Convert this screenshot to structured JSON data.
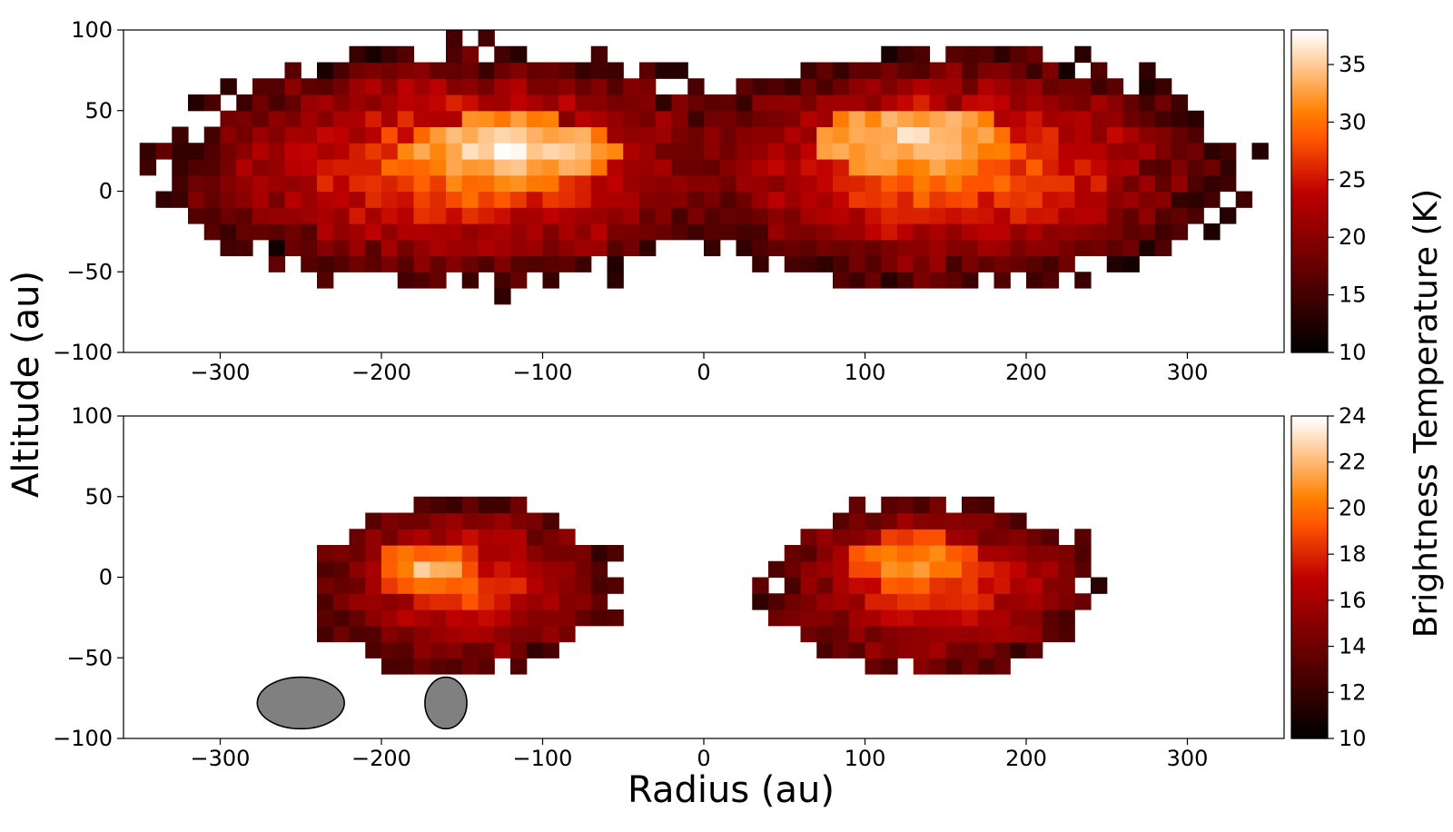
{
  "figure": {
    "xlabel": "Radius (au)",
    "ylabel": "Altitude (au)",
    "colorbar_label": "Brightness Temperature (K)"
  },
  "chart_data": [
    {
      "type": "heatmap",
      "panel": "top",
      "xlim": [
        -360,
        360
      ],
      "ylim": [
        -100,
        100
      ],
      "x_ticks": [
        -300,
        -200,
        -100,
        0,
        100,
        200,
        300
      ],
      "x_tick_labels": [
        "−300",
        "−200",
        "−100",
        "0",
        "100",
        "200",
        "300"
      ],
      "y_ticks": [
        100,
        50,
        0,
        -50,
        -100
      ],
      "y_tick_labels": [
        "100",
        "50",
        "0",
        "−50",
        "−100"
      ],
      "colorbar": {
        "vmin": 10,
        "vmax": 38,
        "ticks": [
          35,
          30,
          25,
          20,
          15,
          10
        ],
        "tick_labels": [
          "35",
          "30",
          "25",
          "20",
          "15",
          "10"
        ]
      },
      "colormap": "gist_heat",
      "cell_width_au": 10,
      "cell_height_au": 10,
      "lobes": [
        {
          "x_center": -150,
          "y_center": 15,
          "half_width": 190,
          "half_height": 75,
          "peak_value": 37,
          "peak_x": -120,
          "peak_y": 25,
          "core_value": 31
        },
        {
          "x_center": 150,
          "y_center": 15,
          "half_width": 180,
          "half_height": 75,
          "peak_value": 36,
          "peak_x": 130,
          "peak_y": 32,
          "core_value": 31
        }
      ]
    },
    {
      "type": "heatmap",
      "panel": "bottom",
      "xlim": [
        -360,
        360
      ],
      "ylim": [
        -100,
        100
      ],
      "x_ticks": [
        -300,
        -200,
        -100,
        0,
        100,
        200,
        300
      ],
      "x_tick_labels": [
        "−300",
        "−200",
        "−100",
        "0",
        "100",
        "200",
        "300"
      ],
      "y_ticks": [
        100,
        50,
        0,
        -50,
        -100
      ],
      "y_tick_labels": [
        "100",
        "50",
        "0",
        "−50",
        "−100"
      ],
      "colorbar": {
        "vmin": 10,
        "vmax": 24,
        "ticks": [
          24,
          22,
          20,
          18,
          16,
          14,
          12,
          10
        ],
        "tick_labels": [
          "24",
          "22",
          "20",
          "18",
          "16",
          "14",
          "12",
          "10"
        ]
      },
      "colormap": "gist_heat",
      "cell_width_au": 10,
      "cell_height_au": 10,
      "lobes": [
        {
          "x_center": -150,
          "y_center": -5,
          "half_width": 95,
          "half_height": 55,
          "peak_value": 22.5,
          "peak_x": -170,
          "peak_y": 5,
          "core_value": 19
        },
        {
          "x_center": 140,
          "y_center": -5,
          "half_width": 105,
          "half_height": 55,
          "peak_value": 21.5,
          "peak_x": 130,
          "peak_y": 10,
          "core_value": 19
        }
      ],
      "beams": [
        {
          "x_center": -250,
          "y_center": -78,
          "x_radius": 27,
          "y_radius": 16,
          "color": "#808080"
        },
        {
          "x_center": -160,
          "y_center": -78,
          "x_radius": 13,
          "y_radius": 16,
          "color": "#808080"
        }
      ]
    }
  ]
}
